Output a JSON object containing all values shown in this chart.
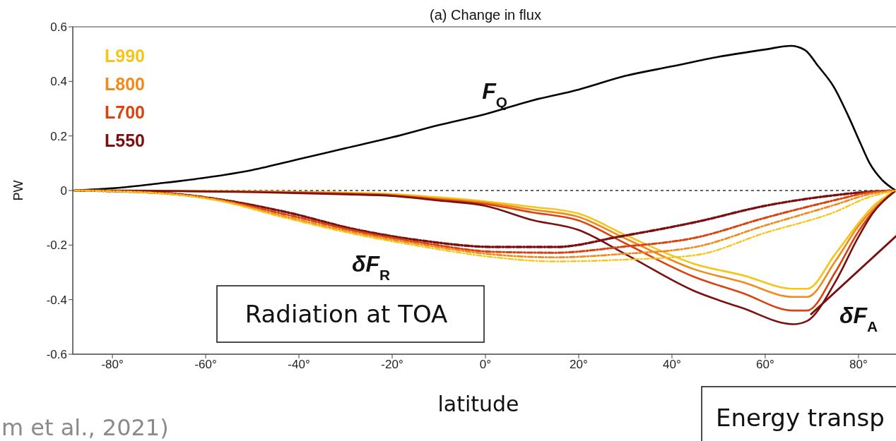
{
  "chart_data": {
    "type": "line",
    "title": "(a) Change in flux",
    "xlabel": "latitude",
    "ylabel": "PW",
    "xlim": [
      -88.5,
      88.5
    ],
    "ylim": [
      -0.6,
      0.6
    ],
    "xticks": [
      {
        "value": -80,
        "label": "-80°"
      },
      {
        "value": -60,
        "label": "-60°"
      },
      {
        "value": -40,
        "label": "-40°"
      },
      {
        "value": -20,
        "label": "-20°"
      },
      {
        "value": 0,
        "label": "0°"
      },
      {
        "value": 20,
        "label": "20°"
      },
      {
        "value": 40,
        "label": "40°"
      },
      {
        "value": 60,
        "label": "60°"
      },
      {
        "value": 80,
        "label": "80°"
      }
    ],
    "yticks": [
      -0.6,
      -0.4,
      -0.2,
      0,
      0.2,
      0.4,
      0.6
    ],
    "grid": false,
    "legend": "top left",
    "ref_lines": [
      {
        "axis": "y",
        "value": 0,
        "color": "#333333",
        "line_style": "dashed"
      }
    ],
    "series": [
      {
        "color": "#000000",
        "line_style": "solid",
        "x": [
          -88,
          -80,
          -70,
          -60,
          -50,
          -40,
          -30,
          -20,
          -10,
          0,
          10,
          20,
          30,
          40,
          50,
          60,
          65.5,
          68.5,
          71.4,
          74.7,
          77.9,
          80.5,
          82.4,
          85,
          88
        ],
        "values": [
          0,
          0.008,
          0.026,
          0.047,
          0.075,
          0.115,
          0.155,
          0.195,
          0.24,
          0.28,
          0.33,
          0.37,
          0.42,
          0.455,
          0.49,
          0.517,
          0.53,
          0.515,
          0.455,
          0.38,
          0.27,
          0.17,
          0.1,
          0.04,
          0
        ]
      },
      {
        "name": "L990",
        "color": "#f5c518",
        "line_style": "solid",
        "x": [
          -88,
          -70,
          -50,
          -30,
          -20,
          -10,
          0,
          10,
          20,
          30,
          45,
          55,
          66,
          69,
          75,
          80,
          83,
          88
        ],
        "values": [
          0,
          -0.001,
          -0.003,
          -0.008,
          -0.013,
          -0.025,
          -0.04,
          -0.06,
          -0.085,
          -0.163,
          -0.27,
          -0.31,
          -0.36,
          -0.36,
          -0.233,
          -0.12,
          -0.06,
          0
        ]
      },
      {
        "name": "L800",
        "color": "#f08a1c",
        "line_style": "solid",
        "x": [
          -88,
          -70,
          -50,
          -30,
          -20,
          -10,
          0,
          10,
          20,
          30,
          45,
          55,
          66,
          69,
          75,
          80,
          83,
          88
        ],
        "values": [
          0,
          -0.001,
          -0.004,
          -0.01,
          -0.016,
          -0.03,
          -0.045,
          -0.07,
          -0.097,
          -0.176,
          -0.29,
          -0.335,
          -0.39,
          -0.39,
          -0.26,
          -0.13,
          -0.07,
          0
        ]
      },
      {
        "name": "L700",
        "color": "#d9430f",
        "line_style": "solid",
        "x": [
          -88,
          -70,
          -50,
          -30,
          -20,
          -10,
          0,
          10,
          20,
          30,
          45,
          55,
          66,
          69,
          75,
          80,
          83,
          88
        ],
        "values": [
          0,
          -0.001,
          -0.005,
          -0.012,
          -0.018,
          -0.033,
          -0.05,
          -0.08,
          -0.11,
          -0.194,
          -0.318,
          -0.375,
          -0.44,
          -0.44,
          -0.3,
          -0.15,
          -0.08,
          0
        ]
      },
      {
        "name": "L550",
        "color": "#7a1010",
        "line_style": "solid",
        "x": [
          -88,
          -70,
          -50,
          -30,
          -20,
          -10,
          0,
          10,
          20,
          30,
          45,
          55,
          66,
          69,
          75,
          80,
          83,
          88
        ],
        "values": [
          0,
          -0.002,
          -0.006,
          -0.014,
          -0.02,
          -0.037,
          -0.056,
          -0.108,
          -0.145,
          -0.233,
          -0.37,
          -0.43,
          -0.49,
          -0.478,
          -0.336,
          -0.17,
          -0.085,
          0
        ]
      },
      {
        "color": "#f5c518",
        "line_style": "dashed",
        "x": [
          -88,
          -70,
          -58,
          -43,
          -28,
          -13,
          2,
          15,
          29,
          45,
          60,
          75,
          82,
          88
        ],
        "values": [
          0,
          -0.01,
          -0.035,
          -0.1,
          -0.16,
          -0.207,
          -0.245,
          -0.26,
          -0.254,
          -0.237,
          -0.155,
          -0.078,
          -0.026,
          0
        ]
      },
      {
        "color": "#f08a1c",
        "line_style": "dashed",
        "x": [
          -88,
          -70,
          -58,
          -43,
          -28,
          -13,
          2,
          15,
          29,
          45,
          60,
          75,
          82,
          88
        ],
        "values": [
          0,
          -0.01,
          -0.033,
          -0.095,
          -0.155,
          -0.2,
          -0.235,
          -0.245,
          -0.233,
          -0.207,
          -0.128,
          -0.052,
          -0.015,
          0
        ]
      },
      {
        "color": "#d9430f",
        "line_style": "dashed",
        "x": [
          -88,
          -70,
          -58,
          -43,
          -28,
          -13,
          2,
          15,
          29,
          45,
          60,
          75,
          82,
          88
        ],
        "values": [
          0,
          -0.009,
          -0.032,
          -0.087,
          -0.148,
          -0.193,
          -0.225,
          -0.228,
          -0.207,
          -0.173,
          -0.1,
          -0.035,
          -0.008,
          0
        ]
      },
      {
        "color": "#7a1010",
        "line_style": "dashed",
        "x": [
          -88,
          -70,
          -58,
          -43,
          -28,
          -13,
          2,
          15,
          29,
          45,
          60,
          75,
          82,
          88
        ],
        "values": [
          0,
          -0.008,
          -0.03,
          -0.078,
          -0.142,
          -0.185,
          -0.207,
          -0.207,
          -0.168,
          -0.116,
          -0.056,
          -0.017,
          -0.005,
          0
        ]
      }
    ],
    "annotations": [
      "F$_{Q}$",
      "δF$_{R}$",
      "δF$_{A}$",
      "Radiation at TOA",
      "Energy transp",
      "m et al., 2021)"
    ]
  }
}
